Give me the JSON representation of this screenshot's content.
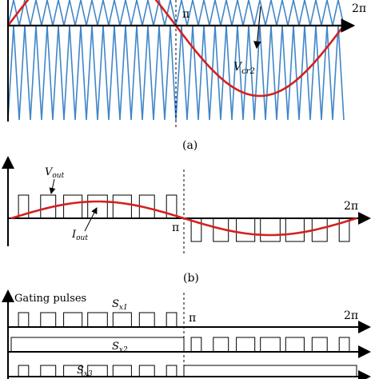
{
  "colors": {
    "carrier": "#3f86c9",
    "modulating": "#d42020",
    "axis": "#000000",
    "pulse": "#000000"
  },
  "panel_a": {
    "caption": "(a)",
    "pi_label": "π",
    "two_pi_label": "2π",
    "vcr2_main": "V",
    "vcr2_sub": "cr2",
    "carrier_teeth": 30
  },
  "panel_b": {
    "caption": "(b)",
    "pi_label": "π",
    "two_pi_label": "2π",
    "vout_main": "V",
    "vout_sub": "out",
    "iout_main": "I",
    "iout_sub": "out",
    "pulses_per_half": 7,
    "output_waveform": "multilevel PWM",
    "current_waveform": "sinusoidal"
  },
  "panel_c": {
    "title": "Gating pulses",
    "pi_label": "π",
    "two_pi_label": "2π",
    "sx1_main": "S",
    "sx1_sub": "x1",
    "sx2_main": "S",
    "sx2_sub": "x2",
    "sx3_main": "S",
    "sx3_sub": "x3",
    "pulses_per_half": 7
  }
}
